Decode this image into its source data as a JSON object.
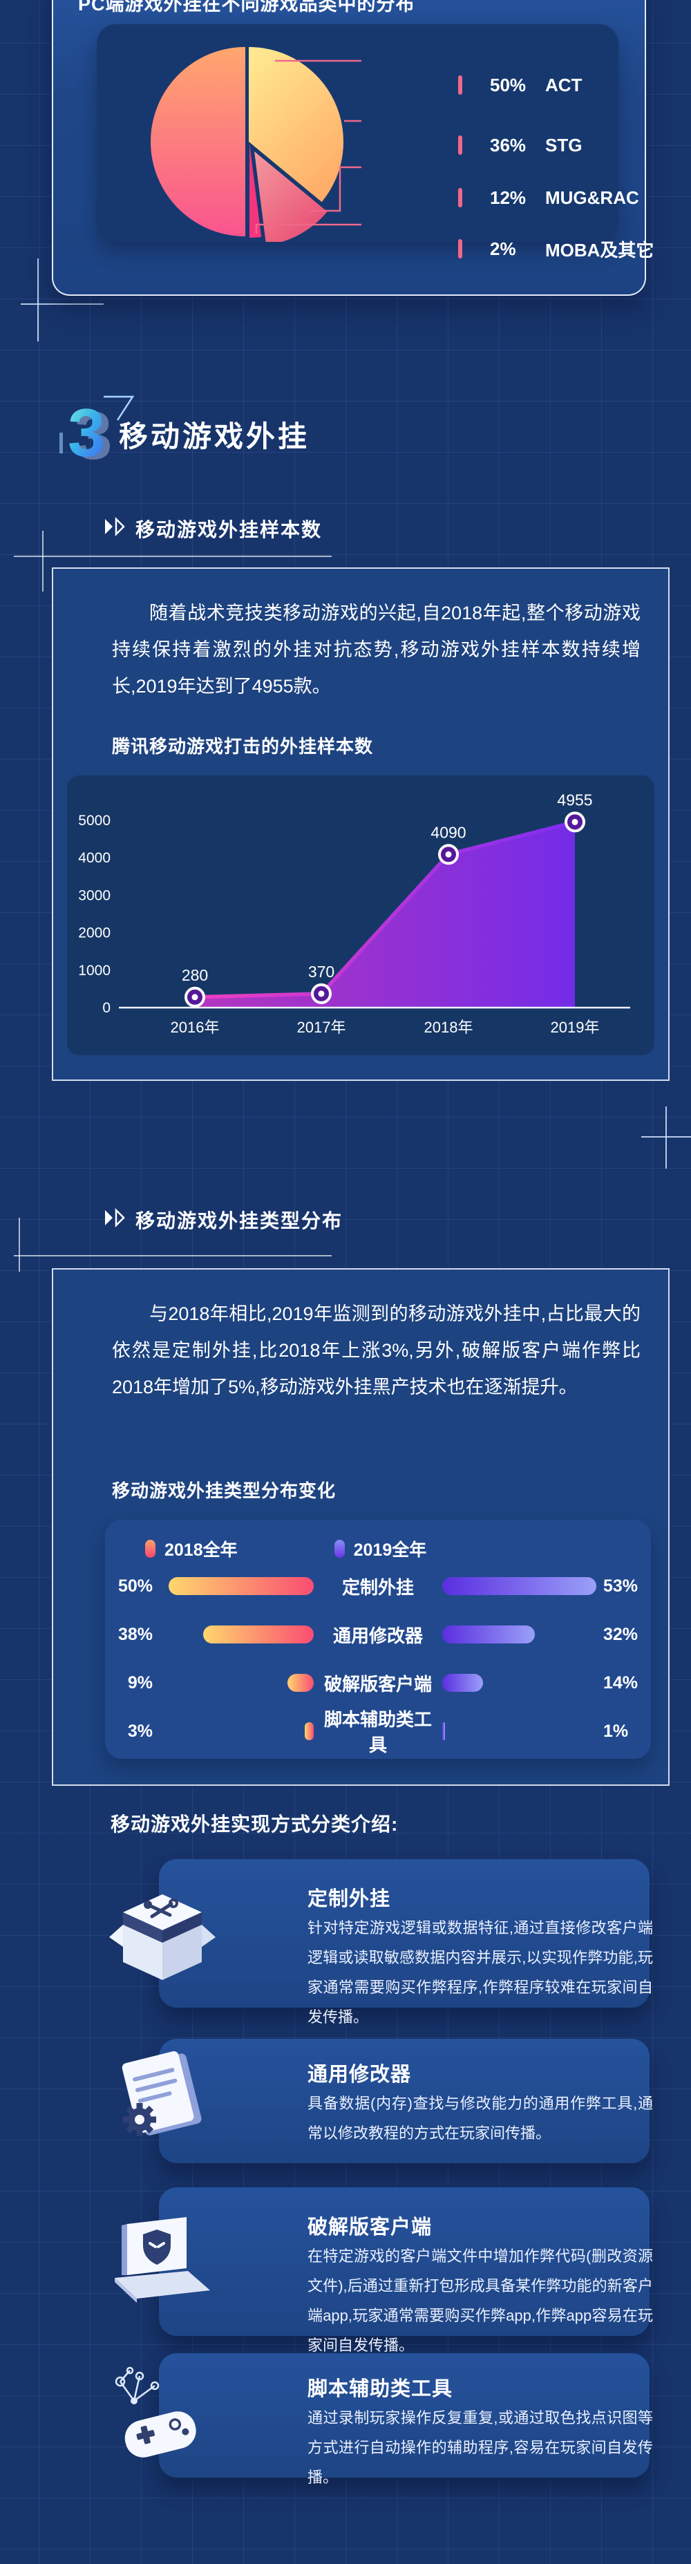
{
  "page": {
    "background": "#17346b",
    "accent_pink": "#f0688a"
  },
  "section": {
    "number": "3",
    "title": "移动游戏外挂"
  },
  "sample_block": {
    "heading": "移动游戏外挂样本数",
    "paragraph": "随着战术竞技类移动游戏的兴起,自2018年起,整个移动游戏持续保持着激烈的外挂对抗态势,移动游戏外挂样本数持续增长,2019年达到了4955款。"
  },
  "type_block": {
    "heading": "移动游戏外挂类型分布",
    "paragraph": "与2018年相比,2019年监测到的移动游戏外挂中,占比最大的依然是定制外挂,比2018年上涨3%,另外,破解版客户端作弊比2018年增加了5%,移动游戏外挂黑产技术也在逐渐提升。"
  },
  "intro_heading": "移动游戏外挂实现方式分类介绍:",
  "cards": [
    {
      "icon": "toolbox-3d-icon",
      "title": "定制外挂",
      "desc": "针对特定游戏逻辑或数据特征,通过直接修改客户端逻辑或读取敏感数据内容并展示,以实现作弊功能,玩家通常需要购买作弊程序,作弊程序较难在玩家间自发传播。"
    },
    {
      "icon": "document-gear-icon",
      "title": "通用修改器",
      "desc": "具备数据(内存)查找与修改能力的通用作弊工具,通常以修改教程的方式在玩家间传播。"
    },
    {
      "icon": "laptop-shield-icon",
      "title": "破解版客户端",
      "desc": "在特定游戏的客户端文件中增加作弊代码(删改资源文件),后通过重新打包形成具备某作弊功能的新客户端app,玩家通常需要购买作弊app,作弊app容易在玩家间自发传播。"
    },
    {
      "icon": "gamepad-script-icon",
      "title": "脚本辅助类工具",
      "desc": "通过录制玩家操作反复重复,或通过取色找点识图等方式进行自动操作的辅助程序,容易在玩家间自发传播。"
    }
  ],
  "chart_data": [
    {
      "type": "pie",
      "title": "PC端游戏外挂在不同游戏品类中的分布",
      "draw_order": [
        {
          "label": "STG",
          "value": 36
        },
        {
          "label": "MUG&RAC",
          "value": 12
        },
        {
          "label": "MOBA及其它",
          "value": 2
        },
        {
          "label": "ACT",
          "value": 50
        }
      ],
      "legend": [
        {
          "value_text": "50%",
          "label": "ACT"
        },
        {
          "value_text": "36%",
          "label": "STG"
        },
        {
          "value_text": "12%",
          "label": "MUG&RAC"
        },
        {
          "value_text": "2%",
          "label": "MOBA及其它"
        }
      ],
      "colors": {
        "ACT": [
          "#ffa66e",
          "#f9558f"
        ],
        "STG": [
          "#ffe68f",
          "#ffaa66"
        ],
        "MUG&RAC": [
          "#f59aa0",
          "#e94f74"
        ],
        "MOBA及其它": "#f2357d"
      }
    },
    {
      "type": "area",
      "title": "腾讯移动游戏打击的外挂样本数",
      "x": [
        "2016年",
        "2017年",
        "2018年",
        "2019年"
      ],
      "values": [
        280,
        370,
        4090,
        4955
      ],
      "ylim": [
        0,
        5000
      ],
      "yticks": [
        0,
        1000,
        2000,
        3000,
        4000,
        5000
      ],
      "grid": false,
      "line_colors": [
        "#ef3fc0",
        "#7d2df2"
      ]
    },
    {
      "type": "bar",
      "title": "移动游戏外挂类型分布变化",
      "categories": [
        "定制外挂",
        "通用修改器",
        "破解版客户端",
        "脚本辅助类工具"
      ],
      "series": [
        {
          "name": "2018全年",
          "values": [
            50,
            38,
            9,
            3
          ]
        },
        {
          "name": "2019全年",
          "values": [
            53,
            32,
            14,
            1
          ]
        }
      ],
      "unit": "%",
      "colors": {
        "2018": [
          "#ffd66e",
          "#fa4d72"
        ],
        "2019": [
          "#5b2ee0",
          "#9aa0f8"
        ]
      }
    }
  ]
}
